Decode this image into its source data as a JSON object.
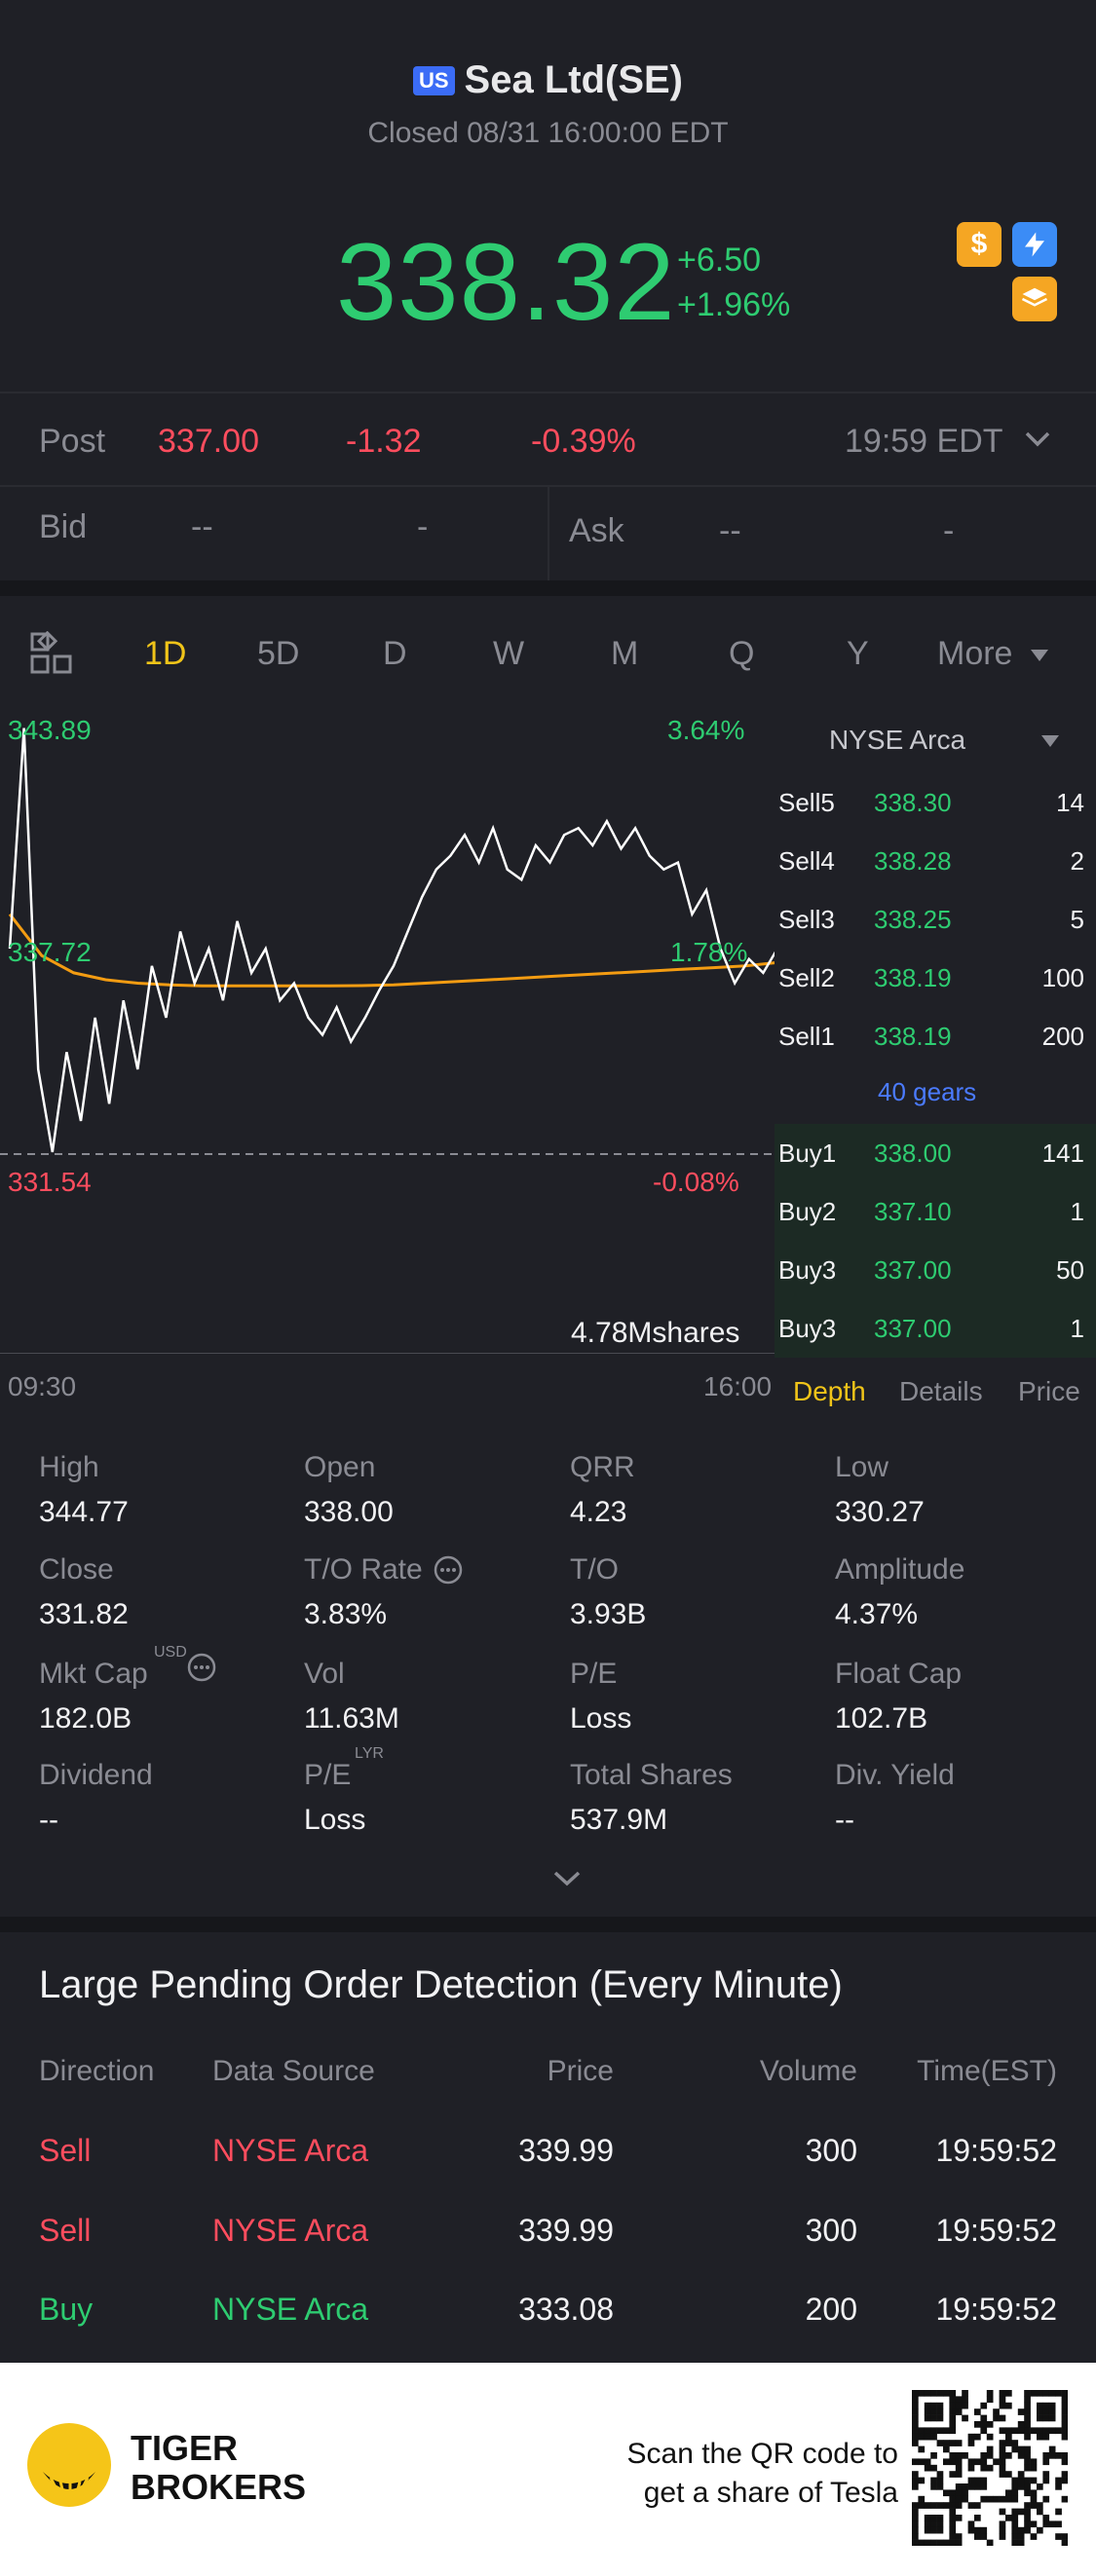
{
  "header": {
    "market_badge": "US",
    "title": "Sea Ltd(SE)",
    "status": "Closed 08/31 16:00:00 EDT",
    "price": "338.32",
    "change": "+6.50",
    "change_pct": "+1.96%",
    "icons": [
      "dollar-icon",
      "lightning-icon",
      "layers-icon"
    ]
  },
  "post": {
    "label": "Post",
    "price": "337.00",
    "change": "-1.32",
    "change_pct": "-0.39%",
    "time": "19:59 EDT"
  },
  "bidask": {
    "bid_label": "Bid",
    "bid_price": "--",
    "bid_size": "-",
    "ask_label": "Ask",
    "ask_price": "--",
    "ask_size": "-"
  },
  "tabs": {
    "items": [
      "1D",
      "5D",
      "D",
      "W",
      "M",
      "Q",
      "Y"
    ],
    "active": "1D",
    "more": "More"
  },
  "chart_data": {
    "type": "line",
    "high_label": "343.89",
    "high_pct": "3.64%",
    "mid_label": "337.72",
    "mid_pct": "1.78%",
    "low_label": "331.54",
    "low_pct": "-0.08%",
    "volume_label": "4.78Mshares",
    "x_start": "09:30",
    "x_end": "16:00",
    "ylim": [
      331.54,
      343.89
    ],
    "series": [
      {
        "values": [
          337.5,
          343.9,
          334.0,
          331.6,
          334.5,
          332.5,
          335.5,
          333.0,
          336.0,
          334.0,
          337.0,
          335.5,
          338.0,
          336.5,
          337.5,
          336.0,
          338.3,
          336.8,
          337.5,
          336.0,
          336.5,
          335.5,
          335.0,
          335.8,
          334.8,
          335.5,
          336.3,
          337.0,
          338.0,
          339.0,
          339.8,
          340.2,
          340.8,
          340.0,
          341.0,
          339.8,
          339.5,
          340.5,
          340.0,
          340.8,
          341.0,
          340.5,
          341.2,
          340.4,
          341.0,
          340.2,
          339.8,
          340.0,
          338.5,
          339.2,
          337.5,
          336.5,
          337.2,
          336.8,
          337.5
        ]
      },
      {
        "values": [
          338.5,
          337.3,
          336.8,
          336.6,
          336.5,
          336.45,
          336.42,
          336.42,
          336.42,
          336.42,
          336.42,
          336.43,
          336.45,
          336.5,
          336.55,
          336.6,
          336.65,
          336.7,
          336.75,
          336.8,
          336.85,
          336.9,
          336.95,
          337.0,
          337.1
        ]
      }
    ]
  },
  "order_book": {
    "exchange": "NYSE Arca",
    "sells": [
      {
        "label": "Sell5",
        "price": "338.30",
        "qty": "14"
      },
      {
        "label": "Sell4",
        "price": "338.28",
        "qty": "2"
      },
      {
        "label": "Sell3",
        "price": "338.25",
        "qty": "5"
      },
      {
        "label": "Sell2",
        "price": "338.19",
        "qty": "100"
      },
      {
        "label": "Sell1",
        "price": "338.19",
        "qty": "200"
      }
    ],
    "gears": "40 gears",
    "buys": [
      {
        "label": "Buy1",
        "price": "338.00",
        "qty": "141"
      },
      {
        "label": "Buy2",
        "price": "337.10",
        "qty": "1"
      },
      {
        "label": "Buy3",
        "price": "337.00",
        "qty": "50"
      },
      {
        "label": "Buy3",
        "price": "337.00",
        "qty": "1"
      }
    ],
    "bottom_tabs": [
      "Depth",
      "Details",
      "Price"
    ]
  },
  "stats": [
    {
      "label": "High",
      "value": "344.77"
    },
    {
      "label": "Open",
      "value": "338.00"
    },
    {
      "label": "QRR",
      "value": "4.23"
    },
    {
      "label": "Low",
      "value": "330.27"
    },
    {
      "label": "Close",
      "value": "331.82"
    },
    {
      "label": "T/O Rate",
      "value": "3.83%"
    },
    {
      "label": "T/O",
      "value": "3.93B"
    },
    {
      "label": "Amplitude",
      "value": "4.37%"
    },
    {
      "label": "Mkt Cap",
      "value": "182.0B",
      "sup": "USD"
    },
    {
      "label": "Vol",
      "value": "11.63M"
    },
    {
      "label": "P/E",
      "value": "Loss"
    },
    {
      "label": "Float Cap",
      "value": "102.7B"
    },
    {
      "label": "Dividend",
      "value": "--"
    },
    {
      "label": "P/E",
      "value": "Loss",
      "sup": "LYR"
    },
    {
      "label": "Total Shares",
      "value": "537.9M"
    },
    {
      "label": "Div. Yield",
      "value": "--"
    }
  ],
  "orders": {
    "title": "Large Pending Order Detection (Every Minute)",
    "headers": [
      "Direction",
      "Data Source",
      "Price",
      "Volume",
      "Time(EST)"
    ],
    "rows": [
      {
        "direction": "Sell",
        "source": "NYSE Arca",
        "price": "339.99",
        "volume": "300",
        "time": "19:59:52"
      },
      {
        "direction": "Sell",
        "source": "NYSE Arca",
        "price": "339.99",
        "volume": "300",
        "time": "19:59:52"
      },
      {
        "direction": "Buy",
        "source": "NYSE Arca",
        "price": "333.08",
        "volume": "200",
        "time": "19:59:52"
      }
    ]
  },
  "footer": {
    "brand_line1": "TIGER",
    "brand_line2": "BROKERS",
    "scan_line1": "Scan the QR code to",
    "scan_line2": "get a share of Tesla"
  },
  "colors": {
    "up": "#2ecc71",
    "down": "#ff4d5e",
    "accent": "#f0c419",
    "avg_line": "#f39c12"
  }
}
